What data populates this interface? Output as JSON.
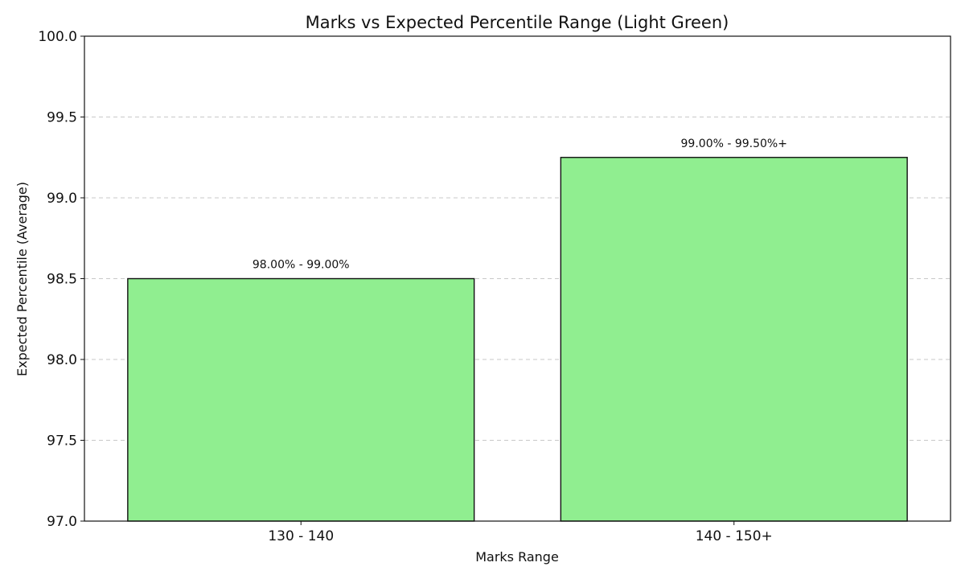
{
  "chart_data": {
    "type": "bar",
    "title": "Marks vs Expected Percentile Range (Light Green)",
    "xlabel": "Marks Range",
    "ylabel": "Expected Percentile (Average)",
    "categories": [
      "130 - 140",
      "140 - 150+"
    ],
    "values": [
      98.5,
      99.25
    ],
    "data_labels": [
      "98.00% - 99.00%",
      "99.00% - 99.50%+"
    ],
    "ylim": [
      97.0,
      100.0
    ],
    "yticks": [
      "97.0",
      "97.5",
      "98.0",
      "98.5",
      "99.0",
      "99.5",
      "100.0"
    ],
    "grid": "horizontal dashed",
    "colors": {
      "bar_fill": "#90ee90",
      "bar_edge": "#111111",
      "grid": "#c8c8c8"
    }
  }
}
